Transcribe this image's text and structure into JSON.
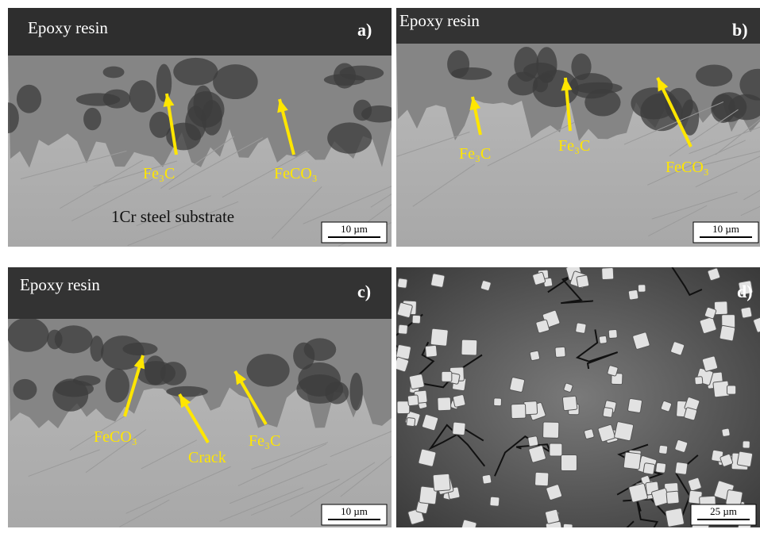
{
  "panels": [
    {
      "label": "a)",
      "region_labels": [
        "Epoxy resin",
        "1Cr steel substrate"
      ],
      "annotations": [
        "Fe₃C",
        "FeCO₃"
      ],
      "scale_bar": "10 µm"
    },
    {
      "label": "b)",
      "region_labels": [
        "Epoxy resin"
      ],
      "annotations": [
        "Fe₃C",
        "Fe₃C",
        "FeCO₃"
      ],
      "scale_bar": "10 µm"
    },
    {
      "label": "c)",
      "region_labels": [
        "Epoxy resin"
      ],
      "annotations": [
        "FeCO₃",
        "Crack",
        "Fe₃C"
      ],
      "scale_bar": "10 µm"
    },
    {
      "label": "d)",
      "region_labels": [],
      "annotations": [],
      "scale_bar": "25 µm"
    }
  ]
}
